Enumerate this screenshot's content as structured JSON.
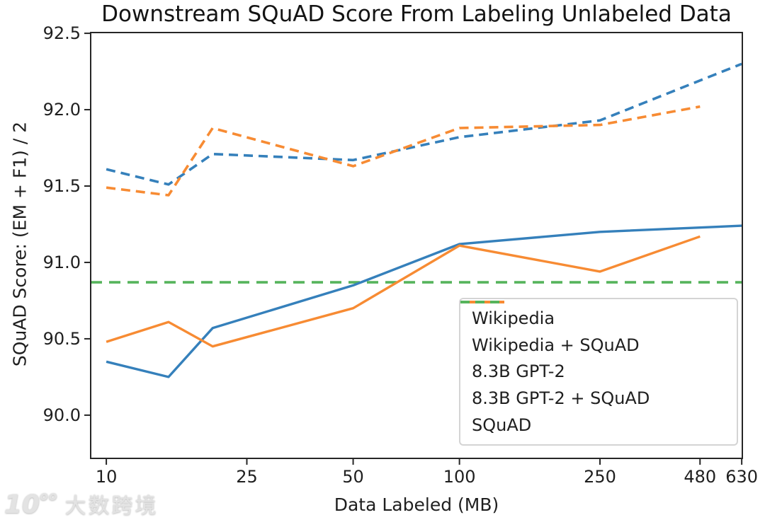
{
  "watermark": {
    "logo_main": "10",
    "logo_sup": "oo",
    "text": "大数跨境"
  },
  "chart_data": {
    "type": "line",
    "title": "Downstream SQuAD Score From Labeling Unlabeled Data",
    "xlabel": "Data Labeled (MB)",
    "ylabel": "SQuAD Score: (EM + F1) / 2",
    "x_scale": "log",
    "grid": false,
    "legend_position": "lower right",
    "xlim": [
      9.03,
      632.5
    ],
    "ylim": [
      89.717,
      92.505
    ],
    "xticks": [
      10,
      25,
      50,
      100,
      250,
      480,
      630
    ],
    "xtick_labels": [
      "10",
      "25",
      "50",
      "100",
      "250",
      "480",
      "630"
    ],
    "yticks": [
      90.0,
      90.5,
      91.0,
      91.5,
      92.0,
      92.5
    ],
    "ytick_labels": [
      "90.0",
      "90.5",
      "91.0",
      "91.5",
      "92.0",
      "92.5"
    ],
    "axis_color": "#262626",
    "series": [
      {
        "name": "Wikipedia",
        "color": "#3580bb",
        "style": "solid",
        "x": [
          10,
          15,
          20,
          50,
          100,
          250,
          630
        ],
        "y": [
          90.35,
          90.25,
          90.57,
          90.85,
          91.12,
          91.2,
          91.24
        ]
      },
      {
        "name": "Wikipedia + SQuAD",
        "color": "#3580bb",
        "style": "dashed",
        "x": [
          10,
          15,
          20,
          50,
          100,
          250,
          630
        ],
        "y": [
          91.61,
          91.51,
          91.71,
          91.67,
          91.82,
          91.93,
          92.3
        ]
      },
      {
        "name": "8.3B GPT-2",
        "color": "#f78b33",
        "style": "solid",
        "x": [
          10,
          15,
          20,
          50,
          100,
          250,
          480
        ],
        "y": [
          90.48,
          90.61,
          90.45,
          90.7,
          91.11,
          90.94,
          91.17
        ]
      },
      {
        "name": "8.3B GPT-2 + SQuAD",
        "color": "#f78b33",
        "style": "dashed",
        "x": [
          10,
          15,
          20,
          50,
          100,
          250,
          480
        ],
        "y": [
          91.49,
          91.44,
          91.88,
          91.63,
          91.88,
          91.9,
          92.02
        ]
      },
      {
        "name": "SQuAD",
        "color": "#56b45c",
        "style": "dashed",
        "baseline": 90.87
      }
    ]
  }
}
